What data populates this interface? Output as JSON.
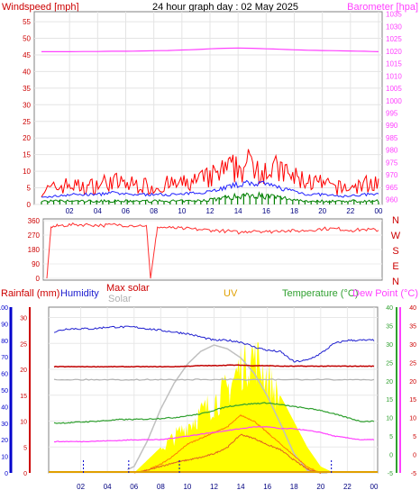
{
  "title": "24 hour graph day : 02 May 2025",
  "colors": {
    "wind": "#ff0000",
    "gust_band": "#ff3030",
    "wind_avg": "#2020ff",
    "wind_low": "#008000",
    "barometer": "#ff40ff",
    "direction": "#ff3030",
    "rain": "#0000cc",
    "humidity": "#2020d0",
    "max_solar": "#c0c0c0",
    "solar": "#b0b0b0",
    "uv": "#ffff00",
    "uv_axis": "#e0a000",
    "temperature": "#30a030",
    "dew_point": "#ff40ff",
    "orange": "#ff8000",
    "dark_red": "#c00000"
  },
  "chart_data": [
    {
      "type": "line",
      "title": "24 hour graph day : 02 May 2025",
      "left_axis": {
        "label": "Windspeed [mph]",
        "ticks": [
          "0",
          "5",
          "10",
          "15",
          "20",
          "25",
          "30",
          "35",
          "40",
          "45",
          "50",
          "55"
        ],
        "range": [
          0,
          58
        ]
      },
      "right_axis": {
        "label": "Barometer [hpa]",
        "ticks": [
          "960",
          "965",
          "970",
          "975",
          "980",
          "985",
          "990",
          "995",
          "1000",
          "1005",
          "1010",
          "1015",
          "1020",
          "1025",
          "1030",
          "1035"
        ],
        "range": [
          958,
          1036
        ]
      },
      "x_ticks": [
        "02",
        "04",
        "06",
        "08",
        "10",
        "12",
        "14",
        "16",
        "18",
        "20",
        "22",
        "00"
      ],
      "hours": [
        0,
        1,
        2,
        3,
        4,
        5,
        6,
        7,
        8,
        9,
        10,
        11,
        12,
        13,
        14,
        15,
        16,
        17,
        18,
        19,
        20,
        21,
        22,
        23,
        24
      ],
      "series": [
        {
          "role": "gust",
          "values": [
            4,
            5,
            6,
            5,
            6,
            7,
            6,
            6,
            5,
            6,
            6,
            7,
            8,
            10,
            11,
            12,
            11,
            10,
            8,
            7,
            6,
            5,
            5,
            6,
            7
          ]
        },
        {
          "role": "average",
          "values": [
            2,
            2.5,
            3,
            3,
            3,
            3.5,
            3,
            3,
            3,
            3,
            3,
            3.5,
            4,
            5,
            6,
            6.5,
            6,
            5,
            4,
            3,
            3,
            2.5,
            2.5,
            3,
            3
          ]
        },
        {
          "role": "low",
          "values": [
            1,
            1,
            1,
            1,
            1,
            1,
            1,
            1,
            1,
            1,
            1,
            1,
            1.5,
            2,
            2.5,
            3,
            2.5,
            2,
            1.5,
            1,
            1,
            1,
            1,
            1,
            1
          ]
        },
        {
          "role": "barometer",
          "values": [
            1019.8,
            1019.8,
            1019.8,
            1019.9,
            1019.9,
            1020.0,
            1020.0,
            1020.1,
            1020.2,
            1020.3,
            1020.5,
            1020.7,
            1021.0,
            1021.2,
            1021.3,
            1021.2,
            1021.0,
            1020.8,
            1020.6,
            1020.4,
            1020.3,
            1020.2,
            1020.1,
            1020.0,
            1019.8
          ]
        }
      ]
    },
    {
      "type": "line",
      "axis_ticks": [
        "360",
        "270",
        "180",
        "90",
        "0"
      ],
      "compass": [
        "N",
        "W",
        "S",
        "E",
        "N"
      ],
      "range": [
        0,
        360
      ],
      "hours": [
        0,
        0.3,
        1,
        2,
        3,
        4,
        5,
        6,
        7.2,
        7.5,
        8,
        9,
        10,
        11,
        12,
        13,
        14,
        15,
        16,
        17,
        18,
        19,
        20,
        21,
        22,
        23,
        24
      ],
      "series": [
        {
          "role": "wind_direction",
          "values": [
            0,
            320,
            330,
            335,
            335,
            330,
            335,
            330,
            330,
            0,
            320,
            315,
            310,
            305,
            300,
            295,
            285,
            300,
            290,
            300,
            295,
            300,
            310,
            310,
            300,
            305,
            300
          ]
        }
      ]
    },
    {
      "type": "line",
      "axes": {
        "rainfall": {
          "label": "Rainfall (mm)",
          "ticks": [
            "0",
            "5",
            "10",
            "15",
            "20",
            "25",
            "30"
          ],
          "range": [
            0,
            32
          ]
        },
        "humidity": {
          "label": "Humidity",
          "ticks": [
            "0",
            "10",
            "20",
            "30",
            "40",
            "50",
            "60",
            "70",
            "80",
            "90",
            "100"
          ],
          "range": [
            0,
            100
          ]
        },
        "solar": {
          "labels": [
            "Max solar",
            "Solar"
          ]
        },
        "uv": {
          "label": "UV"
        },
        "temperature": {
          "label": "Temperature (°C)",
          "ticks": [
            "-5",
            "0",
            "5",
            "10",
            "15",
            "20",
            "25",
            "30",
            "35",
            "40"
          ],
          "range": [
            -5,
            40
          ]
        },
        "dew_point": {
          "label": "Dew Point (°C)",
          "ticks": [
            "-5",
            "0",
            "5",
            "10",
            "15",
            "20",
            "25",
            "30",
            "35",
            "40"
          ],
          "range": [
            -5,
            40
          ]
        }
      },
      "x_ticks": [
        "02",
        "04",
        "06",
        "08",
        "10",
        "12",
        "14",
        "16",
        "18",
        "20",
        "22",
        "00"
      ],
      "hours": [
        0,
        1,
        2,
        3,
        4,
        5,
        6,
        7,
        8,
        9,
        10,
        11,
        12,
        13,
        14,
        15,
        16,
        17,
        18,
        19,
        20,
        21,
        22,
        23,
        24
      ],
      "series": [
        {
          "role": "humidity",
          "values": [
            85,
            87,
            87,
            87,
            88,
            88,
            88,
            87,
            86,
            85,
            84,
            82,
            80,
            80,
            79,
            76,
            74,
            73,
            67,
            68,
            72,
            78,
            80,
            80,
            80
          ]
        },
        {
          "role": "rainfall_total",
          "values": [
            20.5,
            20.5,
            20.5,
            20.5,
            20.5,
            20.5,
            20.5,
            20.5,
            20.5,
            20.5,
            20.6,
            20.7,
            20.7,
            20.8,
            20.8,
            20.7,
            20.7,
            20.6,
            20.6,
            20.6,
            20.6,
            20.6,
            20.6,
            20.6,
            20.6
          ]
        },
        {
          "role": "temperature",
          "values": [
            8.5,
            8.6,
            8.8,
            9.0,
            9.2,
            9.5,
            9.5,
            9.6,
            9.8,
            10,
            10.5,
            11,
            12,
            13,
            13.5,
            13.8,
            14,
            13.5,
            13,
            12.5,
            12,
            11,
            10,
            9,
            9
          ]
        },
        {
          "role": "dew_point",
          "values": [
            3.5,
            3.5,
            3.5,
            3.6,
            3.7,
            3.8,
            4,
            4,
            4,
            4.5,
            5,
            5.5,
            6,
            6.5,
            7,
            7.5,
            7.5,
            7,
            7,
            6.5,
            6,
            5,
            4.5,
            4,
            4
          ]
        },
        {
          "role": "max_solar",
          "values": [
            0,
            0,
            0,
            0,
            0,
            0,
            0.05,
            0.25,
            0.5,
            0.7,
            0.85,
            0.95,
            1,
            0.97,
            0.9,
            0.78,
            0.6,
            0.38,
            0.15,
            0.02,
            0,
            0,
            0,
            0,
            0
          ]
        },
        {
          "role": "solar",
          "values": [
            0,
            0,
            0,
            0,
            0,
            0,
            0,
            0.05,
            0.15,
            0.3,
            0.5,
            0.6,
            0.7,
            0.8,
            1,
            0.9,
            0.7,
            0.5,
            0.3,
            0.1,
            0,
            0,
            0,
            0,
            0
          ]
        },
        {
          "role": "uv",
          "values": [
            0,
            0,
            0,
            0,
            0,
            0,
            0,
            0.1,
            0.2,
            0.3,
            0.4,
            0.5,
            0.6,
            0.7,
            0.9,
            1,
            0.8,
            0.6,
            0.4,
            0.2,
            0.05,
            0,
            0,
            0,
            0
          ]
        },
        {
          "role": "orange_trace",
          "values": [
            0,
            0,
            0,
            0,
            0,
            0,
            0,
            0.02,
            0.05,
            0.08,
            0.1,
            0.12,
            0.15,
            0.2,
            0.3,
            0.27,
            0.22,
            0.18,
            0.1,
            0.03,
            0,
            0,
            0,
            0,
            0
          ]
        }
      ]
    }
  ]
}
